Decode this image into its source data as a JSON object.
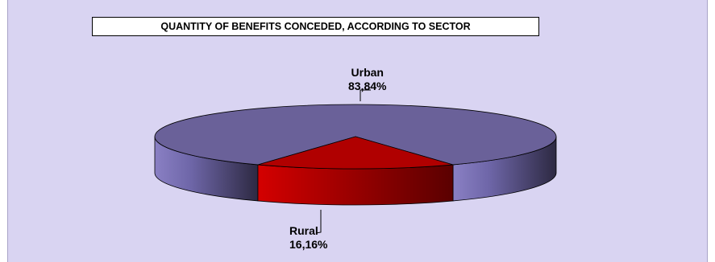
{
  "chart_data": {
    "type": "pie",
    "title": "QUANTITY OF BENEFITS CONCEDED, ACCORDING TO SECTOR",
    "categories": [
      "Urban",
      "Rural"
    ],
    "values": [
      83.84,
      16.16
    ],
    "value_labels": [
      "83,84%",
      "16,16%"
    ],
    "colors": [
      "#6a6199",
      "#b00000"
    ],
    "legend": "none"
  }
}
